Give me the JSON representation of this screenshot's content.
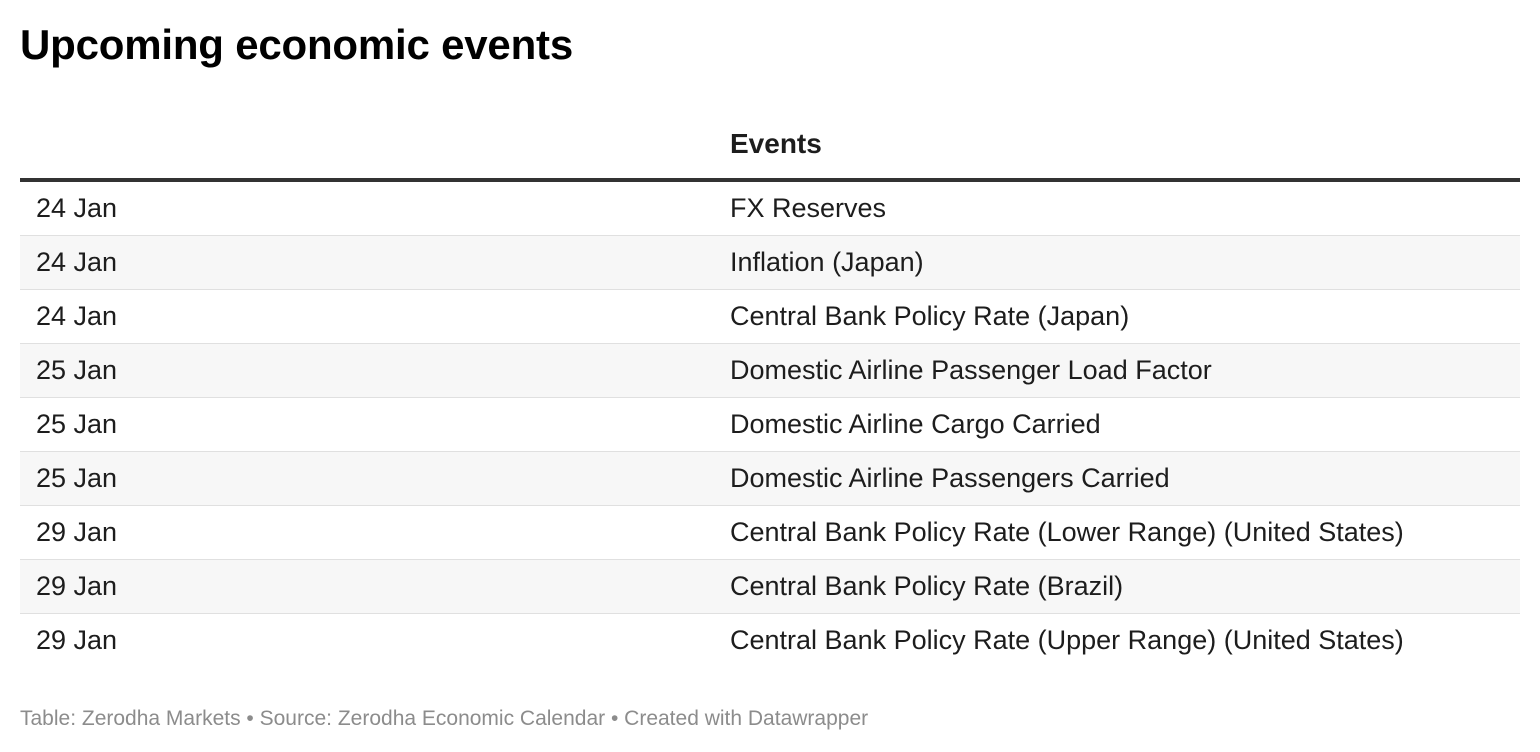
{
  "title": "Upcoming economic events",
  "table": {
    "headers": {
      "date": "",
      "events": "Events"
    },
    "rows": [
      {
        "date": "24 Jan",
        "event": "FX Reserves"
      },
      {
        "date": "24 Jan",
        "event": "Inflation (Japan)"
      },
      {
        "date": "24 Jan",
        "event": "Central Bank Policy Rate (Japan)"
      },
      {
        "date": "25 Jan",
        "event": "Domestic Airline Passenger Load Factor"
      },
      {
        "date": "25 Jan",
        "event": "Domestic Airline Cargo Carried"
      },
      {
        "date": "25 Jan",
        "event": "Domestic Airline Passengers Carried"
      },
      {
        "date": "29 Jan",
        "event": "Central Bank Policy Rate (Lower Range) (United States)"
      },
      {
        "date": "29 Jan",
        "event": "Central Bank Policy Rate (Brazil)"
      },
      {
        "date": "29 Jan",
        "event": "Central Bank Policy Rate (Upper Range) (United States)"
      }
    ]
  },
  "footer": "Table: Zerodha Markets • Source: Zerodha Economic Calendar • Created with Datawrapper",
  "colors": {
    "header_rule": "#333333",
    "row_stripe": "#f7f7f7",
    "row_divider": "#e0e0e0",
    "footer_text": "#8c8c8c"
  }
}
